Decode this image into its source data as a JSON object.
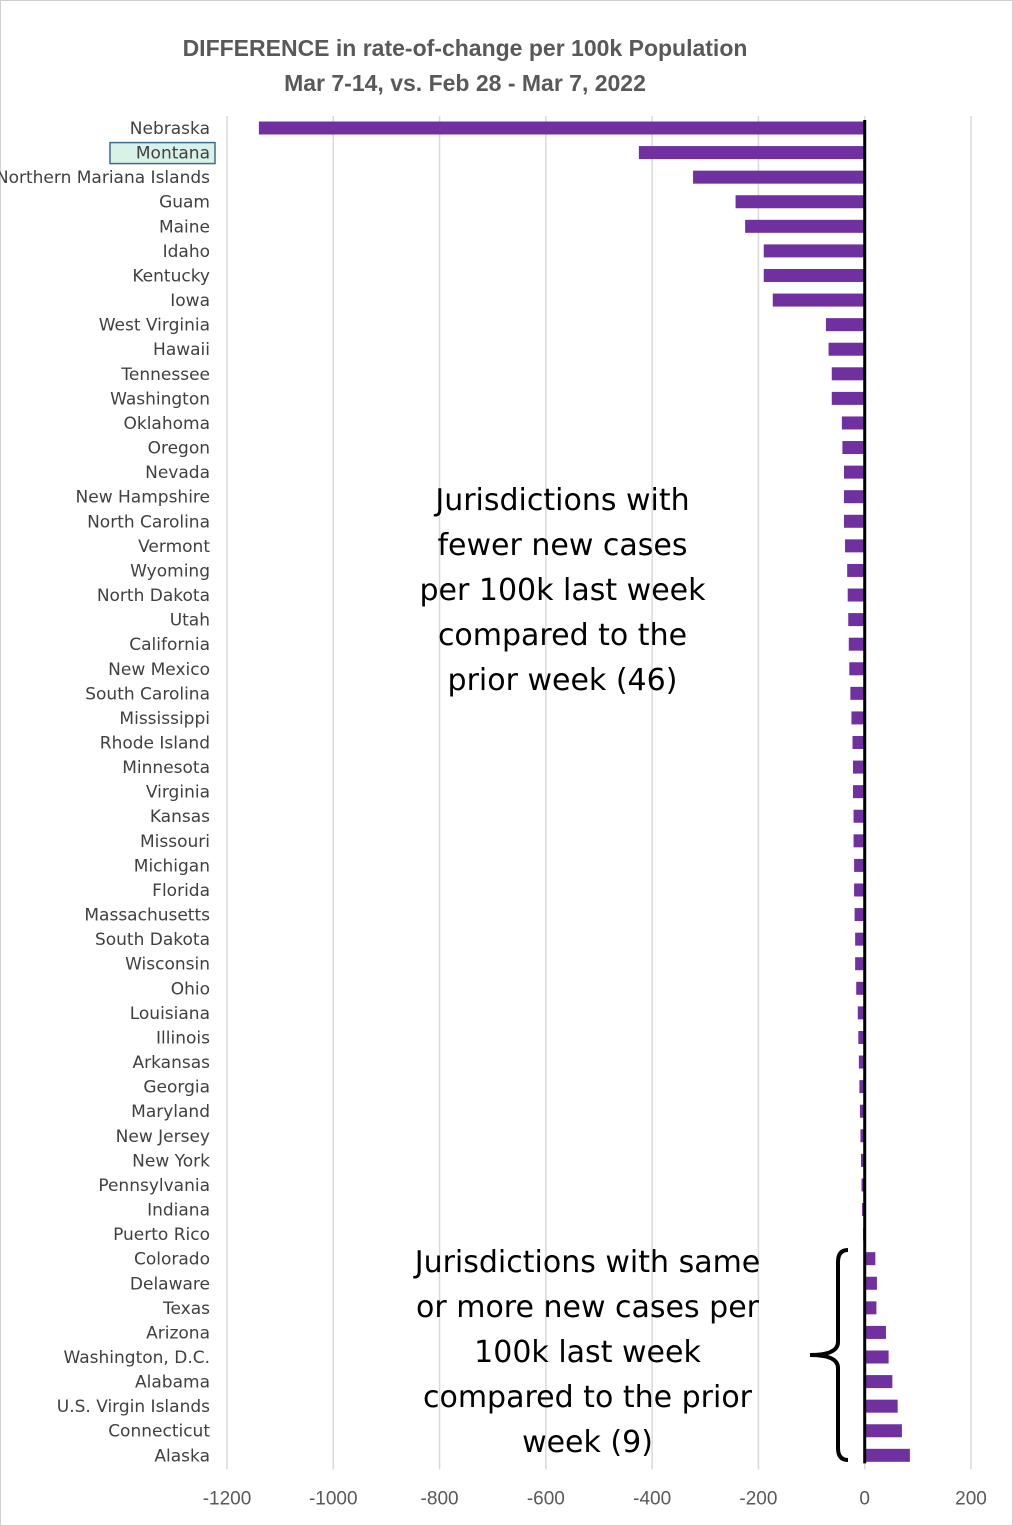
{
  "chart_data": {
    "type": "bar",
    "orientation": "horizontal",
    "title": "DIFFERENCE in rate-of-change per 100k Population",
    "subtitle": "Mar 7-14, vs. Feb 28 - Mar 7, 2022",
    "xlim": [
      -1200,
      200
    ],
    "xticks": [
      "-1200",
      "-1000",
      "-800",
      "-600",
      "-400",
      "-200",
      "0",
      "200"
    ],
    "xtick_values": [
      -1200,
      -1000,
      -800,
      -600,
      -400,
      -200,
      0,
      200
    ],
    "grid": true,
    "bar_color": "#7030a0",
    "highlighted_category": "Montana",
    "highlight_color": "#d9f2e6",
    "categories": [
      "Nebraska",
      "Montana",
      "Northern Mariana Islands",
      "Guam",
      "Maine",
      "Idaho",
      "Kentucky",
      "Iowa",
      "West Virginia",
      "Hawaii",
      "Tennessee",
      "Washington",
      "Oklahoma",
      "Oregon",
      "Nevada",
      "New Hampshire",
      "North Carolina",
      "Vermont",
      "Wyoming",
      "North Dakota",
      "Utah",
      "California",
      "New Mexico",
      "South Carolina",
      "Mississippi",
      "Rhode Island",
      "Minnesota",
      "Virginia",
      "Kansas",
      "Missouri",
      "Michigan",
      "Florida",
      "Massachusetts",
      "South Dakota",
      "Wisconsin",
      "Ohio",
      "Louisiana",
      "Illinois",
      "Arkansas",
      "Georgia",
      "Maryland",
      "New Jersey",
      "New York",
      "Pennsylvania",
      "Indiana",
      "Puerto Rico",
      "Colorado",
      "Delaware",
      "Texas",
      "Arizona",
      "Washington, D.C.",
      "Alabama",
      "U.S. Virgin Islands",
      "Connecticut",
      "Alaska"
    ],
    "values": [
      -1140,
      -425,
      -323,
      -243,
      -225,
      -190,
      -190,
      -173,
      -73,
      -68,
      -62,
      -62,
      -43,
      -42,
      -39,
      -39,
      -39,
      -37,
      -33,
      -32,
      -31,
      -30,
      -29,
      -27,
      -25,
      -23,
      -22,
      -22,
      -21,
      -21,
      -20,
      -20,
      -19,
      -18,
      -18,
      -16,
      -13,
      -12,
      -11,
      -10,
      -9,
      -8,
      -7,
      -6,
      -5,
      -3,
      20,
      23,
      22,
      40,
      45,
      52,
      62,
      70,
      85
    ],
    "annotations": [
      "Jurisdictions with fewer new cases per 100k last week compared to the prior week (46)",
      "Jurisdictions with same or more new cases per 100k last week compared to the prior week (9)"
    ]
  },
  "annotation_lines": {
    "fewer": [
      "Jurisdictions with",
      "fewer new cases",
      "per 100k last week",
      "compared to the",
      "prior week (46)"
    ],
    "more": [
      "Jurisdictions with same",
      "or more new cases per",
      "100k last week",
      "compared to the prior",
      "week (9)"
    ]
  }
}
